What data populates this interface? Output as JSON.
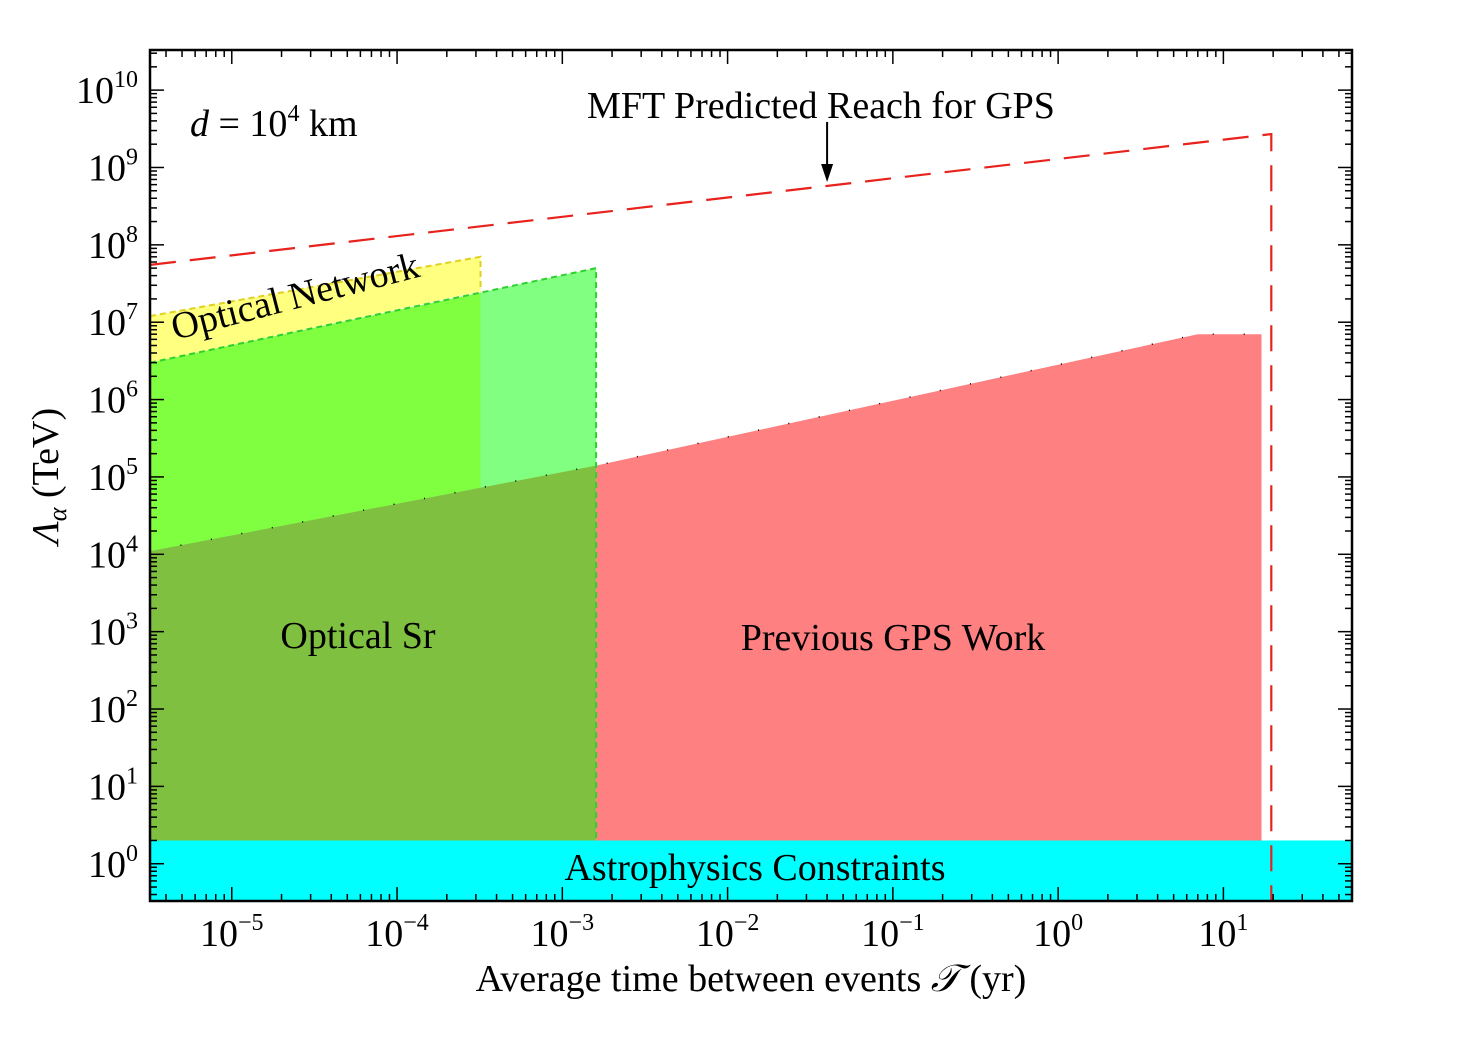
{
  "chart_data": {
    "type": "area",
    "xscale": "log",
    "yscale": "log",
    "xlim": [
      3.2e-06,
      60
    ],
    "ylim": [
      0.33,
      33000000000.0
    ],
    "grid": false,
    "xlabel": {
      "prefix": "Average time between events ",
      "symbol": "𝒯",
      "unit": " (yr)"
    },
    "ylabel": {
      "symbol": "Λ",
      "subscript": "α",
      "unit": " (TeV)"
    },
    "x_ticks": [
      {
        "base": "10",
        "exp": "−5",
        "value": 1e-05
      },
      {
        "base": "10",
        "exp": "−4",
        "value": 0.0001
      },
      {
        "base": "10",
        "exp": "−3",
        "value": 0.001
      },
      {
        "base": "10",
        "exp": "−2",
        "value": 0.01
      },
      {
        "base": "10",
        "exp": "−1",
        "value": 0.1
      },
      {
        "base": "10",
        "exp": "0",
        "value": 1
      },
      {
        "base": "10",
        "exp": "1",
        "value": 10
      }
    ],
    "y_ticks": [
      {
        "base": "10",
        "exp": "0",
        "value": 1
      },
      {
        "base": "10",
        "exp": "1",
        "value": 10
      },
      {
        "base": "10",
        "exp": "2",
        "value": 100
      },
      {
        "base": "10",
        "exp": "3",
        "value": 1000
      },
      {
        "base": "10",
        "exp": "4",
        "value": 10000.0
      },
      {
        "base": "10",
        "exp": "5",
        "value": 100000.0
      },
      {
        "base": "10",
        "exp": "6",
        "value": 1000000.0
      },
      {
        "base": "10",
        "exp": "7",
        "value": 10000000.0
      },
      {
        "base": "10",
        "exp": "8",
        "value": 100000000.0
      },
      {
        "base": "10",
        "exp": "9",
        "value": 1000000000.0
      },
      {
        "base": "10",
        "exp": "10",
        "value": 10000000000.0
      }
    ],
    "annotations": {
      "distance": {
        "var": "d",
        "eq": " = 10",
        "exp": "4",
        "unit": " km"
      },
      "mft_label": "MFT Predicted Reach for GPS",
      "arrow_tip": {
        "x": 0.04,
        "y": 650000000.0
      }
    },
    "regions": [
      {
        "name": "Optical Network",
        "color": "#ffff80",
        "x": [
          3.2e-06,
          0.00032
        ],
        "y_upper": [
          12000000.0,
          70000000.0
        ],
        "y_lower": [
          3000000.0,
          25000000.0
        ]
      },
      {
        "name": "Optical Sr",
        "color": "#80ff80",
        "x": [
          3.2e-06,
          0.0016
        ],
        "y_upper": [
          3000000.0,
          50000000.0
        ],
        "y_lower_value": 2
      },
      {
        "name": "Optical Sr overlap",
        "color": "#80c040",
        "x": [
          3.2e-06,
          0.0016
        ],
        "y_upper": [
          11000.0,
          140000.0
        ],
        "y_lower_value": 2
      },
      {
        "name": "Optical Sr bright",
        "color": "#80ff40",
        "x": [
          3.2e-06,
          0.00032
        ],
        "y_upper": [
          11000.0,
          70000.0
        ],
        "y_top": [
          3000000.0,
          25000000.0
        ]
      },
      {
        "name": "Previous GPS Work",
        "color": "#ff8080",
        "x": [
          0.0016,
          7,
          17
        ],
        "y_upper": [
          140000.0,
          7000000.0,
          7000000.0
        ],
        "y_lower_value": 2
      },
      {
        "name": "Astrophysics Constraints",
        "color": "#00ffff",
        "y_range": [
          0.33,
          2
        ]
      }
    ],
    "series": [
      {
        "name": "MFT Predicted Reach for GPS",
        "style": "dashed",
        "color": "#e8221c",
        "x": [
          3.2e-06,
          19.5,
          19.5
        ],
        "y": [
          55000000.0,
          2700000000.0,
          0.33
        ]
      }
    ],
    "region_labels": {
      "optical_network": "Optical Network",
      "optical_sr": "Optical Sr",
      "gps_work": "Previous GPS Work",
      "astro": "Astrophysics Constraints"
    }
  }
}
